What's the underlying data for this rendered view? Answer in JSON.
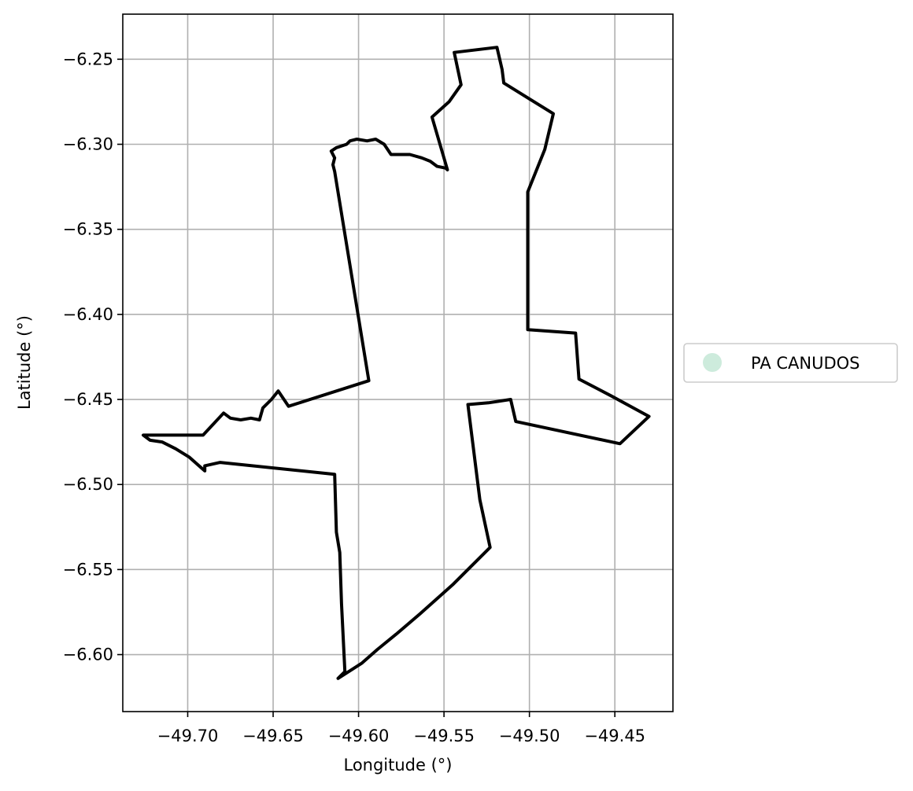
{
  "map": {
    "xlabel": "Longitude (°)",
    "ylabel": "Latitude (°)",
    "xlim": [
      -49.738,
      -49.416
    ],
    "ylim": [
      -6.6335,
      -6.2235
    ],
    "x_ticks": [
      -49.7,
      -49.65,
      -49.6,
      -49.55,
      -49.5,
      -49.45
    ],
    "x_tick_labels": [
      "−49.70",
      "−49.65",
      "−49.60",
      "−49.55",
      "−49.50",
      "−49.45"
    ],
    "y_ticks": [
      -6.25,
      -6.3,
      -6.35,
      -6.4,
      -6.45,
      -6.5,
      -6.55,
      -6.6
    ],
    "y_tick_labels": [
      "−6.25",
      "−6.30",
      "−6.35",
      "−6.40",
      "−6.45",
      "−6.50",
      "−6.55",
      "−6.60"
    ],
    "grid": true,
    "boundary_color": "#000000",
    "grid_color": "#b0b0b0"
  },
  "legend": {
    "placement": "right-center",
    "items": [
      {
        "label": "PA CANUDOS",
        "color": "#cdebdc"
      }
    ]
  },
  "chart_data": {
    "type": "map-polygon",
    "feature_name": "PA CANUDOS",
    "boundary": [
      [
        -49.548,
        -6.315
      ],
      [
        -49.557,
        -6.284
      ],
      [
        -49.547,
        -6.275
      ],
      [
        -49.54,
        -6.265
      ],
      [
        -49.544,
        -6.246
      ],
      [
        -49.519,
        -6.243
      ],
      [
        -49.516,
        -6.256
      ],
      [
        -49.515,
        -6.264
      ],
      [
        -49.486,
        -6.282
      ],
      [
        -49.491,
        -6.303
      ],
      [
        -49.501,
        -6.328
      ],
      [
        -49.501,
        -6.409
      ],
      [
        -49.473,
        -6.411
      ],
      [
        -49.471,
        -6.438
      ],
      [
        -49.452,
        -6.448
      ],
      [
        -49.43,
        -6.46
      ],
      [
        -49.447,
        -6.476
      ],
      [
        -49.508,
        -6.463
      ],
      [
        -49.511,
        -6.45
      ],
      [
        -49.524,
        -6.452
      ],
      [
        -49.536,
        -6.453
      ],
      [
        -49.529,
        -6.509
      ],
      [
        -49.523,
        -6.537
      ],
      [
        -49.545,
        -6.559
      ],
      [
        -49.564,
        -6.576
      ],
      [
        -49.578,
        -6.588
      ],
      [
        -49.589,
        -6.597
      ],
      [
        -49.598,
        -6.605
      ],
      [
        -49.612,
        -6.614
      ],
      [
        -49.608,
        -6.61
      ],
      [
        -49.61,
        -6.57
      ],
      [
        -49.611,
        -6.54
      ],
      [
        -49.613,
        -6.528
      ],
      [
        -49.614,
        -6.494
      ],
      [
        -49.681,
        -6.487
      ],
      [
        -49.69,
        -6.489
      ],
      [
        -49.69,
        -6.492
      ],
      [
        -49.699,
        -6.484
      ],
      [
        -49.707,
        -6.479
      ],
      [
        -49.715,
        -6.475
      ],
      [
        -49.722,
        -6.474
      ],
      [
        -49.726,
        -6.471
      ],
      [
        -49.691,
        -6.471
      ],
      [
        -49.679,
        -6.458
      ],
      [
        -49.675,
        -6.461
      ],
      [
        -49.669,
        -6.462
      ],
      [
        -49.663,
        -6.461
      ],
      [
        -49.658,
        -6.462
      ],
      [
        -49.656,
        -6.455
      ],
      [
        -49.651,
        -6.45
      ],
      [
        -49.647,
        -6.445
      ],
      [
        -49.641,
        -6.454
      ],
      [
        -49.594,
        -6.439
      ],
      [
        -49.614,
        -6.316
      ],
      [
        -49.615,
        -6.312
      ],
      [
        -49.614,
        -6.308
      ],
      [
        -49.616,
        -6.304
      ],
      [
        -49.613,
        -6.302
      ],
      [
        -49.607,
        -6.3
      ],
      [
        -49.605,
        -6.298
      ],
      [
        -49.601,
        -6.297
      ],
      [
        -49.595,
        -6.298
      ],
      [
        -49.59,
        -6.297
      ],
      [
        -49.585,
        -6.3
      ],
      [
        -49.581,
        -6.306
      ],
      [
        -49.575,
        -6.306
      ],
      [
        -49.57,
        -6.306
      ],
      [
        -49.563,
        -6.308
      ],
      [
        -49.558,
        -6.31
      ],
      [
        -49.554,
        -6.313
      ],
      [
        -49.549,
        -6.314
      ]
    ]
  }
}
